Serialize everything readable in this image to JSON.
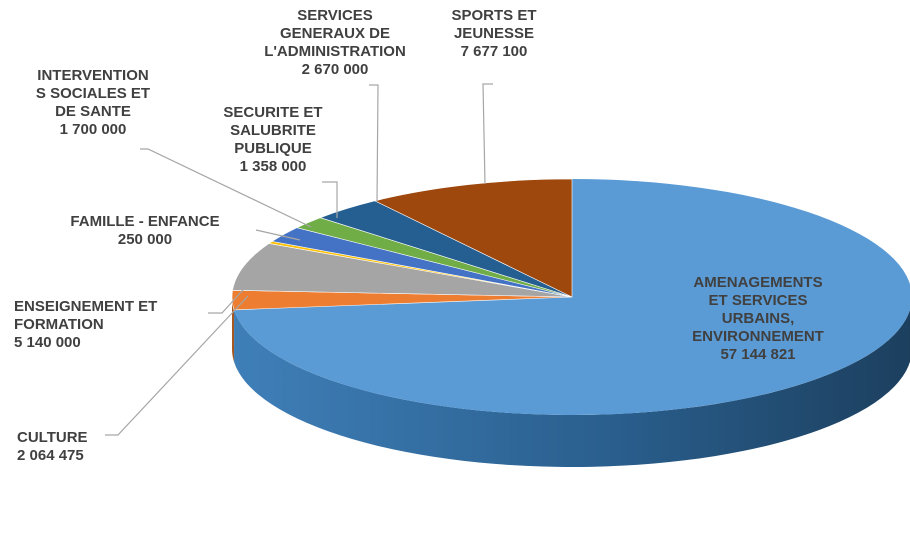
{
  "chart_data": {
    "type": "pie",
    "title": "",
    "style": "3d-exploded-tilted",
    "legend": "none",
    "slices": [
      {
        "label_lines": [
          "AMENAGEMENTS",
          "ET SERVICES",
          "URBAINS,",
          "ENVIRONNEMENT"
        ],
        "value": 57144821,
        "value_text": "57 144 821",
        "color": "#5b9bd5"
      },
      {
        "label_lines": [
          "CULTURE"
        ],
        "value": 2064475,
        "value_text": "2 064 475",
        "color": "#ed7d31"
      },
      {
        "label_lines": [
          "ENSEIGNEMENT ET",
          "FORMATION"
        ],
        "value": 5140000,
        "value_text": "5 140 000",
        "color": "#a5a5a5"
      },
      {
        "label_lines": [
          "FAMILLE - ENFANCE"
        ],
        "value": 250000,
        "value_text": "250 000",
        "color": "#ffc000"
      },
      {
        "label_lines": [
          "INTERVENTION",
          "S SOCIALES ET",
          "DE SANTE"
        ],
        "value": 1700000,
        "value_text": "1 700 000",
        "color": "#4472c4"
      },
      {
        "label_lines": [
          "SECURITE ET",
          "SALUBRITE",
          "PUBLIQUE"
        ],
        "value": 1358000,
        "value_text": "1 358 000",
        "color": "#70ad47"
      },
      {
        "label_lines": [
          "SERVICES",
          "GENERAUX DE",
          "L'ADMINISTRATION"
        ],
        "value": 2670000,
        "value_text": "2 670 000",
        "color": "#255e91"
      },
      {
        "label_lines": [
          "SPORTS ET",
          "JEUNESSE"
        ],
        "value": 7677100,
        "value_text": "7 677 100",
        "color": "#9e480e"
      }
    ]
  }
}
